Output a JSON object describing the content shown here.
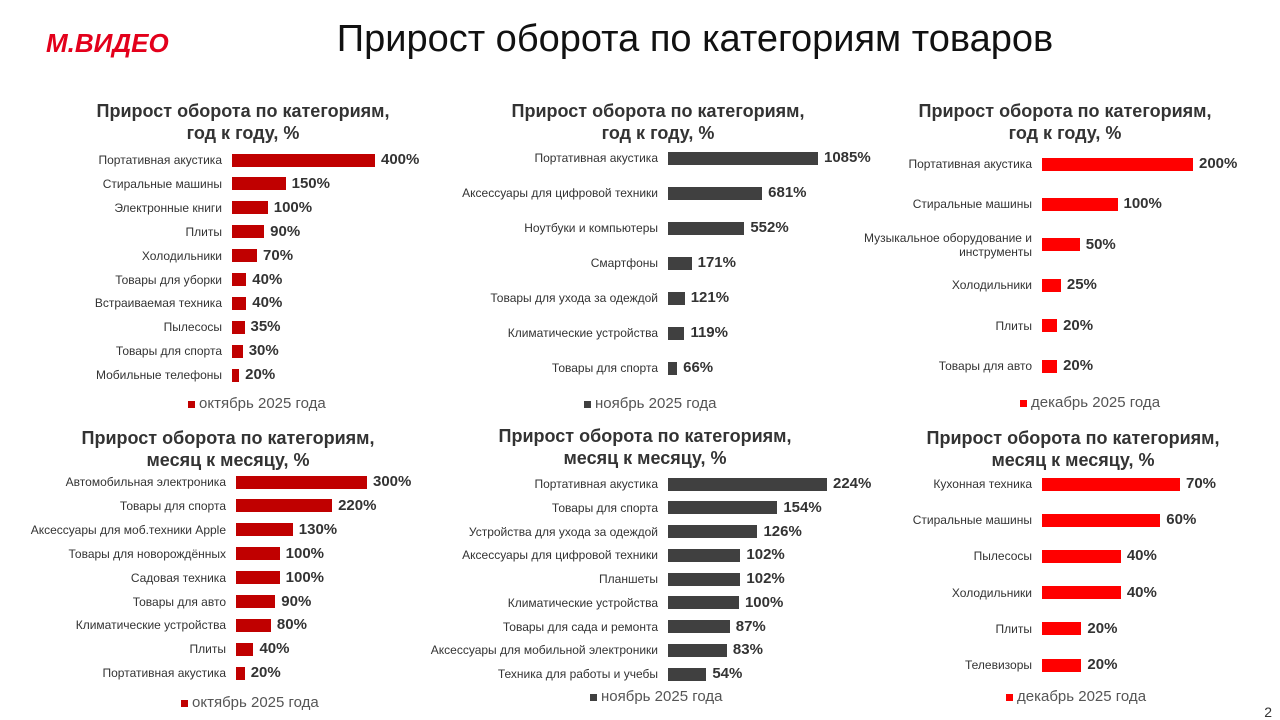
{
  "header": {
    "logo": "М.ВИДЕО",
    "title": "Прирост оборота по категориям товаров"
  },
  "page_number": "2",
  "chart_data": [
    {
      "type": "bar",
      "orientation": "horizontal",
      "title": "Прирост оборота по категориям,\nгод к году, %",
      "categories": [
        "Портативная акустика",
        "Стиральные машины",
        "Электронные книги",
        "Плиты",
        "Холодильники",
        "Товары для уборки",
        "Встраиваемая техника",
        "Пылесосы",
        "Товары для спорта",
        "Мобильные телефоны"
      ],
      "series": [
        {
          "name": "октябрь 2025 года",
          "color": "#c00000",
          "values": [
            400,
            150,
            100,
            90,
            70,
            40,
            40,
            35,
            30,
            20
          ],
          "value_labels": [
            "400%",
            "150%",
            "100%",
            "90%",
            "70%",
            "40%",
            "40%",
            "35%",
            "30%",
            "20%"
          ]
        }
      ]
    },
    {
      "type": "bar",
      "orientation": "horizontal",
      "title": "Прирост оборота по категориям,\nгод к году, %",
      "categories": [
        "Портативная акустика",
        "Аксессуары для цифровой техники",
        "Ноутбуки и компьютеры",
        "Смартфоны",
        "Товары для ухода за одеждой",
        "Климатические устройства",
        "Товары для спорта"
      ],
      "series": [
        {
          "name": "ноябрь 2025 года",
          "color": "#404040",
          "values": [
            1085,
            681,
            552,
            171,
            121,
            119,
            66
          ],
          "value_labels": [
            "1085%",
            "681%",
            "552%",
            "171%",
            "121%",
            "119%",
            "66%"
          ]
        }
      ]
    },
    {
      "type": "bar",
      "orientation": "horizontal",
      "title": "Прирост оборота по категориям,\nгод к году, %",
      "categories": [
        "Портативная акустика",
        "Стиральные машины",
        "Музыкальное оборудование и инструменты",
        "Холодильники",
        "Плиты",
        "Товары для авто"
      ],
      "series": [
        {
          "name": "декабрь 2025 года",
          "color": "#ff0000",
          "values": [
            200,
            100,
            50,
            25,
            20,
            20
          ],
          "value_labels": [
            "200%",
            "100%",
            "50%",
            "25%",
            "20%",
            "20%"
          ]
        }
      ]
    },
    {
      "type": "bar",
      "orientation": "horizontal",
      "title": "Прирост оборота по категориям,\nмесяц к месяцу, %",
      "categories": [
        "Автомобильная электроника",
        "Товары для спорта",
        "Аксессуары для моб.техники Apple",
        "Товары для новорождённых",
        "Садовая техника",
        "Товары для авто",
        "Климатические устройства",
        "Плиты",
        "Портативная акустика"
      ],
      "series": [
        {
          "name": "октябрь 2025 года",
          "color": "#c00000",
          "values": [
            300,
            220,
            130,
            100,
            100,
            90,
            80,
            40,
            20
          ],
          "value_labels": [
            "300%",
            "220%",
            "130%",
            "100%",
            "100%",
            "90%",
            "80%",
            "40%",
            "20%"
          ]
        }
      ]
    },
    {
      "type": "bar",
      "orientation": "horizontal",
      "title": "Прирост оборота по категориям,\nмесяц к месяцу, %",
      "categories": [
        "Портативная акустика",
        "Товары для спорта",
        "Устройства для ухода за одеждой",
        "Аксессуары для цифровой техники",
        "Планшеты",
        "Климатические устройства",
        "Товары для сада и ремонта",
        "Аксессуары для мобильной электроники",
        "Техника для работы и учебы"
      ],
      "series": [
        {
          "name": "ноябрь 2025 года",
          "color": "#404040",
          "values": [
            224,
            154,
            126,
            102,
            102,
            100,
            87,
            83,
            54
          ],
          "value_labels": [
            "224%",
            "154%",
            "126%",
            "102%",
            "102%",
            "100%",
            "87%",
            "83%",
            "54%"
          ]
        }
      ]
    },
    {
      "type": "bar",
      "orientation": "horizontal",
      "title": "Прирост оборота по категориям,\nмесяц к месяцу, %",
      "categories": [
        "Кухонная техника",
        "Стиральные машины",
        "Пылесосы",
        "Холодильники",
        "Плиты",
        "Телевизоры"
      ],
      "series": [
        {
          "name": "декабрь 2025 года",
          "color": "#ff0000",
          "values": [
            70,
            60,
            40,
            40,
            20,
            20
          ],
          "value_labels": [
            "70%",
            "60%",
            "40%",
            "40%",
            "20%",
            "20%"
          ]
        }
      ]
    }
  ]
}
